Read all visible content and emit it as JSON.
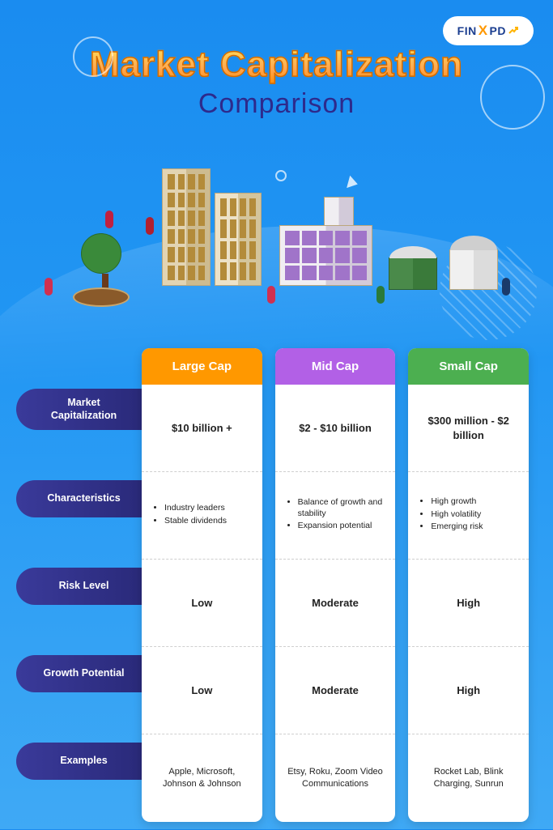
{
  "brand": {
    "name": "FINXPD",
    "accent_char": "X"
  },
  "title": "Market Capitalization",
  "subtitle": "Comparison",
  "colors": {
    "large_cap": "#ff9800",
    "mid_cap": "#b260e6",
    "small_cap": "#4caf50",
    "row_label_bg": "#2f2f88",
    "bg_top": "#1a8cf0",
    "bg_bottom": "#3fa9f5"
  },
  "row_labels": [
    "Market Capitalization",
    "Characteristics",
    "Risk Level",
    "Growth Potential",
    "Examples"
  ],
  "columns": [
    {
      "key": "large_cap",
      "header": "Large Cap",
      "header_color": "#ff9800",
      "market_cap": "$10 billion +",
      "characteristics": [
        "Industry leaders",
        "Stable dividends"
      ],
      "risk_level": "Low",
      "growth_potential": "Low",
      "examples": "Apple, Microsoft, Johnson & Johnson"
    },
    {
      "key": "mid_cap",
      "header": "Mid Cap",
      "header_color": "#b260e6",
      "market_cap": "$2 - $10 billion",
      "characteristics": [
        "Balance of growth and stability",
        "Expansion potential"
      ],
      "risk_level": "Moderate",
      "growth_potential": "Moderate",
      "examples": "Etsy, Roku, Zoom Video Communications"
    },
    {
      "key": "small_cap",
      "header": "Small Cap",
      "header_color": "#4caf50",
      "market_cap": "$300 million - $2 billion",
      "characteristics": [
        "High growth",
        "High volatility",
        "Emerging risk"
      ],
      "risk_level": "High",
      "growth_potential": "High",
      "examples": "Rocket Lab, Blink Charging, Sunrun"
    }
  ],
  "illustration": {
    "type": "infographic",
    "elements": [
      "tall-office-towers",
      "mid-office-buildings",
      "small-houses",
      "tree",
      "people"
    ],
    "palette": {
      "tower": "#e2d4b3",
      "tower_shade": "#cdbb90",
      "mid_building": "#f0eef2",
      "mid_windows": "#a074c9",
      "small_house_green": "#4a8a4a",
      "small_house_white": "#f0f0f0",
      "tree_crown": "#3a8a3a",
      "tree_base": "#8a5a2a"
    }
  }
}
